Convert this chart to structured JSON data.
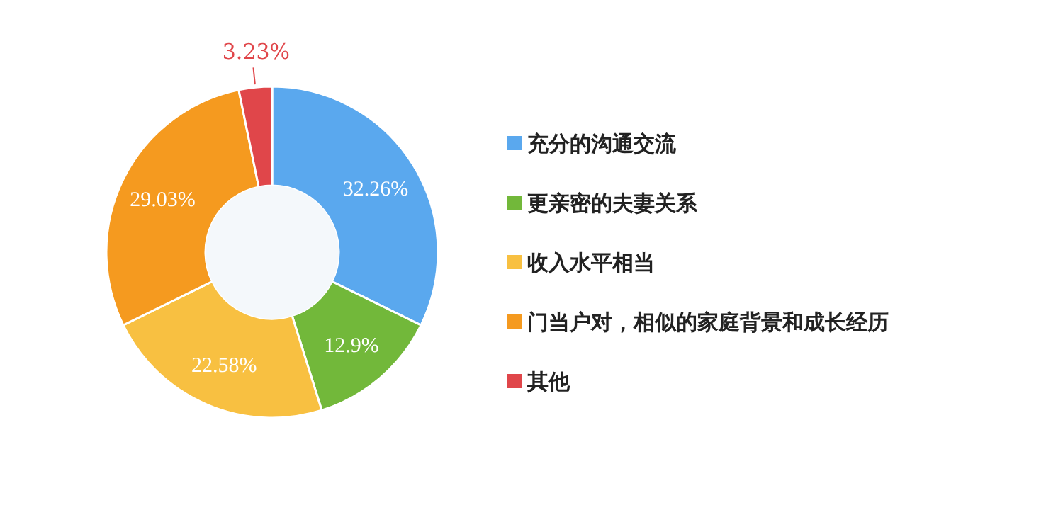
{
  "chart_data": {
    "type": "donut",
    "categories": [
      "充分的沟通交流",
      "更亲密的夫妻关系",
      "收入水平相当",
      "门当户对，相似的家庭背景和成长经历",
      "其他"
    ],
    "values": [
      32.26,
      12.9,
      22.58,
      29.03,
      3.23
    ],
    "colors": [
      "#5aa8ee",
      "#72b83a",
      "#f8c041",
      "#f59a1f",
      "#e0464a"
    ],
    "value_labels": [
      "32.26%",
      "12.9%",
      "22.58%",
      "29.03%",
      "3.23%"
    ],
    "legend": "right"
  }
}
